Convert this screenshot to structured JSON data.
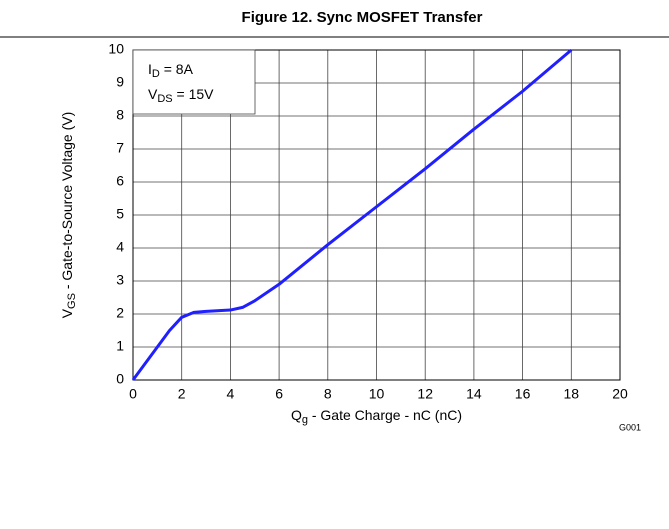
{
  "chart_data": {
    "type": "line",
    "title": "Figure 12. Sync MOSFET Transfer",
    "xlabel": [
      "Q",
      "g",
      " - Gate Charge - nC (nC)"
    ],
    "ylabel": [
      "V",
      "GS",
      " - Gate-to-Source Voltage (V)"
    ],
    "annotations": [
      [
        "I",
        "D",
        " = 8A"
      ],
      [
        "V",
        "DS",
        " = 15V"
      ]
    ],
    "figure_code": "G001",
    "x": [
      0,
      0.5,
      1,
      1.5,
      2,
      2.5,
      3,
      4,
      4.5,
      5,
      6,
      8,
      10,
      12,
      14,
      16,
      18
    ],
    "series": [
      {
        "name": "VGS",
        "color": "#1f1fff",
        "values": [
          0,
          0.5,
          1.0,
          1.5,
          1.9,
          2.05,
          2.08,
          2.12,
          2.2,
          2.4,
          2.9,
          4.1,
          5.25,
          6.4,
          7.6,
          8.75,
          10
        ]
      }
    ],
    "xlim": [
      0,
      20
    ],
    "xticks": [
      0,
      2,
      4,
      6,
      8,
      10,
      12,
      14,
      16,
      18,
      20
    ],
    "ylim": [
      0,
      10
    ],
    "yticks": [
      0,
      1,
      2,
      3,
      4,
      5,
      6,
      7,
      8,
      9,
      10
    ],
    "grid": true
  }
}
